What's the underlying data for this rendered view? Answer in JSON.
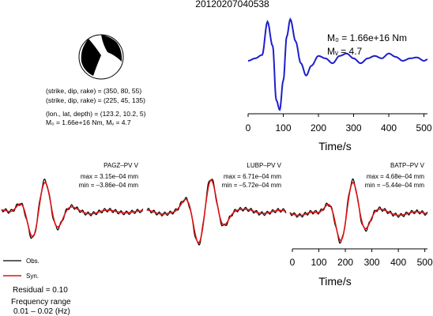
{
  "title": "20120207040538",
  "mechanism": {
    "line1": "(strike, dip, rake) = (350, 80, 55)",
    "line2": "(strike, dip, rake) = (225, 45, 135)",
    "loc_line": "(lon., lat, depth) = (123.2, 10.2, 5)",
    "moment_line": "M₀ = 1.66e+16 Nm, Mᵥ = 4.7",
    "colors": {
      "fill": "#000000",
      "background": "#ffffff"
    }
  },
  "stf_panel": {
    "m0_text": "M₀ = 1.66e+16 Nm",
    "mw_text": "Mᵥ = 4.7",
    "xlabel": "Time/s",
    "x_ticks": [
      "0",
      "100",
      "200",
      "300",
      "400",
      "500"
    ],
    "color": "#1f1fcc"
  },
  "stations": [
    {
      "name": "PAGZ–PV V",
      "max_text": "max = 3.15e–04 mm",
      "min_text": "min = –3.86e–04 mm"
    },
    {
      "name": "LUBP–PV V",
      "max_text": "max = 6.71e–04 mm",
      "min_text": "min = –5.72e–04 mm"
    },
    {
      "name": "BATP–PV V",
      "max_text": "max = 4.68e–04 mm",
      "min_text": "min = –5.44e–04 mm"
    }
  ],
  "wave_axis": {
    "xlabel": "Time/s",
    "x_ticks": [
      "0",
      "100",
      "200",
      "300",
      "400",
      "500"
    ]
  },
  "legend": {
    "obs_label": "Obs.",
    "syn_label": "Syn.",
    "obs_color": "#000000",
    "syn_color": "#dd1111"
  },
  "residual_text": "Residual = 0.10",
  "freq_label": "Frequency range",
  "freq_value": "0.01 – 0.02 (Hz)",
  "chart_data": [
    {
      "type": "line",
      "title": "",
      "xlabel": "Time/s",
      "xlim": [
        0,
        510
      ],
      "x_ticks": [
        0,
        100,
        200,
        300,
        400,
        500
      ],
      "series": [
        {
          "name": "",
          "x": [
            0,
            20,
            40,
            55,
            70,
            80,
            90,
            100,
            110,
            120,
            135,
            150,
            165,
            180,
            200,
            220,
            240,
            260,
            280,
            300,
            320,
            340,
            360,
            380,
            400,
            420,
            440,
            460,
            480,
            500,
            510
          ],
          "y": [
            0,
            0.05,
            0.12,
            0.8,
            0.3,
            -0.8,
            -1.0,
            -0.4,
            0.5,
            0.85,
            0.4,
            -0.05,
            -0.3,
            -0.1,
            0.1,
            0.05,
            -0.05,
            0.1,
            0.15,
            0.05,
            -0.05,
            0.05,
            0.1,
            0.05,
            0.15,
            0.08,
            0.0,
            0.05,
            0.07,
            0.0,
            0.03
          ]
        }
      ]
    }
  ]
}
